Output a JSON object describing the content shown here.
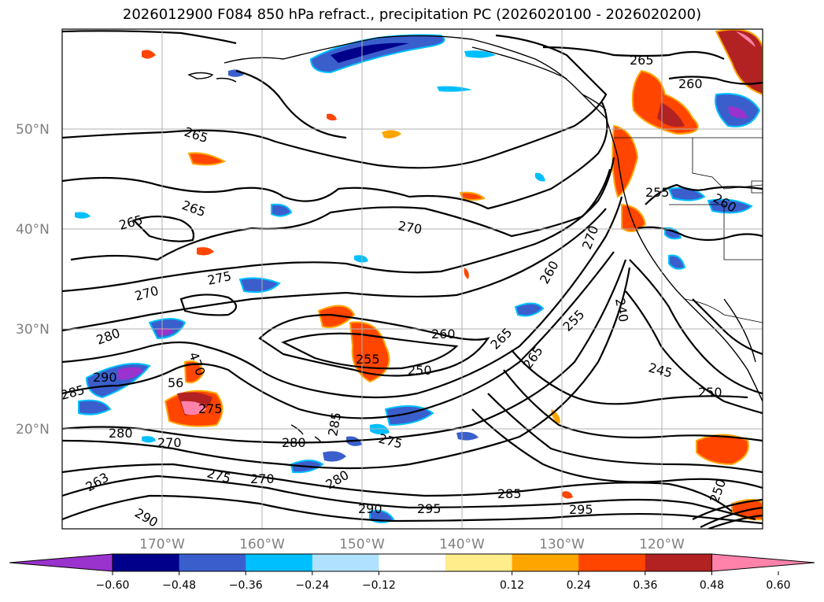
{
  "title": "2026012900 F084 850 hPa refract., precipitation PC (2026020100 - 2026020200)",
  "lat_labels": [
    "50°N",
    "40°N",
    "30°N",
    "20°N"
  ],
  "lon_labels": [
    "170°W",
    "160°W",
    "150°W",
    "140°W",
    "130°W",
    "120°W"
  ],
  "contour_labels": [
    "265",
    "260",
    "265",
    "265",
    "265",
    "270",
    "270",
    "275",
    "270",
    "280",
    "290",
    "285",
    "280",
    "270",
    "275",
    "270",
    "263",
    "290",
    "280",
    "285",
    "275",
    "280",
    "290",
    "295",
    "285",
    "295",
    "255",
    "260",
    "250",
    "265",
    "265",
    "255",
    "260",
    "240",
    "245",
    "250",
    "250",
    "255",
    "260",
    "470",
    "56",
    "275"
  ],
  "colorbar": {
    "ticks": [
      "−0.60",
      "−0.48",
      "−0.36",
      "−0.24",
      "−0.12",
      "0.12",
      "0.24",
      "0.36",
      "0.48",
      "0.60"
    ],
    "colors": [
      "#9a32cd",
      "#00008b",
      "#3a5fcd",
      "#00bfff",
      "#b0e2ff",
      "#ffffff",
      "#ffec8b",
      "#ffa500",
      "#ff4500",
      "#b22222",
      "#ff82ab"
    ]
  }
}
